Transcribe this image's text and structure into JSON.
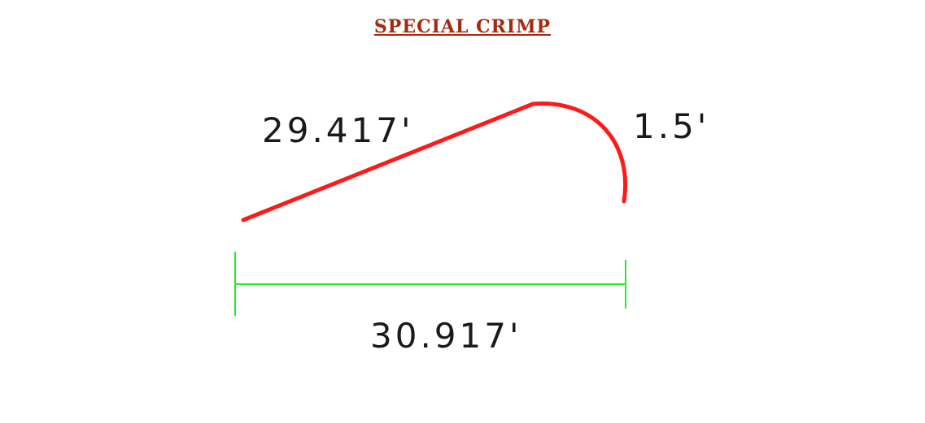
{
  "title": "SPECIAL CRIMP",
  "dimensions": {
    "slope_length": "29.417'",
    "hook_length": "1.5'",
    "overall_length": "30.917'"
  },
  "colors": {
    "title": "#a52a10",
    "profile": "#ff1a1a",
    "dimension_line": "#22ee22",
    "text": "#1a1a1a"
  }
}
